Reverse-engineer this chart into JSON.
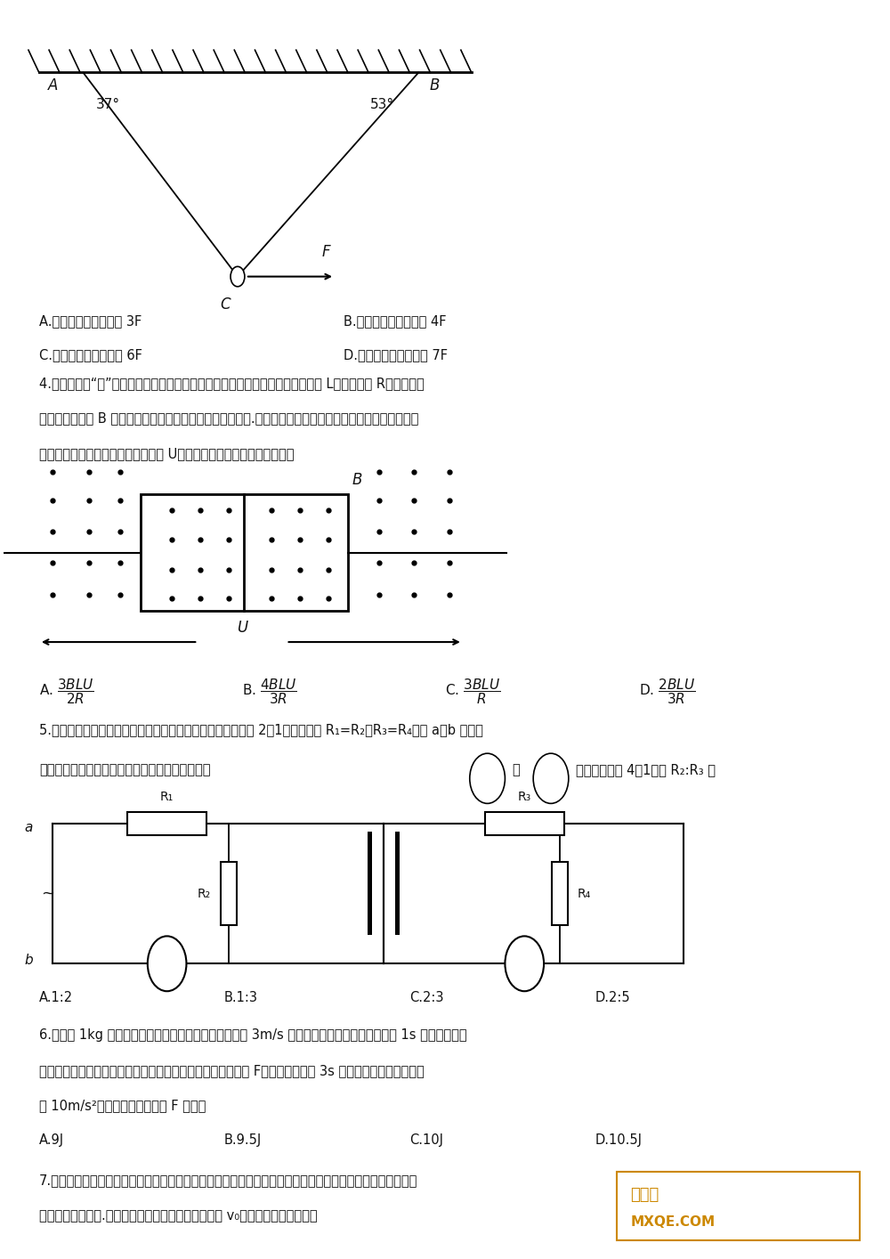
{
  "bg_color": "#ffffff",
  "page_width": 10.0,
  "page_height": 14.14,
  "dpi": 100,
  "q4_text_1": "4.如图所示，“日”字金属线框由七段粗细均匀的金属棒组成，每一段的长度均为 L，电阱均为 R，线框固定",
  "q4_text_2": "在磁感应强度为 B 的匀强磁场中，磁场方向与线框平面垂直.两段电阱不计的导线分别连接在左、右两侧金属",
  "q4_text_3": "棒的中点，通过导线给线框加上电压 U，则金属线框受到的安培力大小为",
  "q5_text_1": "5.在如图所示的电路中，理想变压器的原、副线圈的匹数比为 2：1，定値电阱 R₁=R₂，R₃=R₄，在 a、b 两端输",
  "q5_text_2": "入一有效値恒定的正弦式交流电，结果理想电流表",
  "q5_text_3": "的示数之比为 4：1，则 R₂:R₃ 为",
  "q6_text_1": "6.质量为 1kg 的物块静止在水平面上，给物块一大小为 3m/s 的初速度，物块在水平面上滑行 1s 后停下，若给",
  "q6_text_2": "物块一相同的初速度的同时，再给物块一个沿运动方向的恒力 F，结果物块运动 3s 后停下，重力加速度大小",
  "q6_text_3": "取 10m/s²，则整个过程中拉力 F 做功为",
  "q7_text_1": "7.长直导线固定在足够大的光滑绝缘水平面上，通有如图所示方向的恒定电流，正方形金属线框静止在水平面",
  "q7_text_2": "上如图所示的位置.给线框一个如图所示方向的初速度 v₀，则下列判断正确的是"
}
